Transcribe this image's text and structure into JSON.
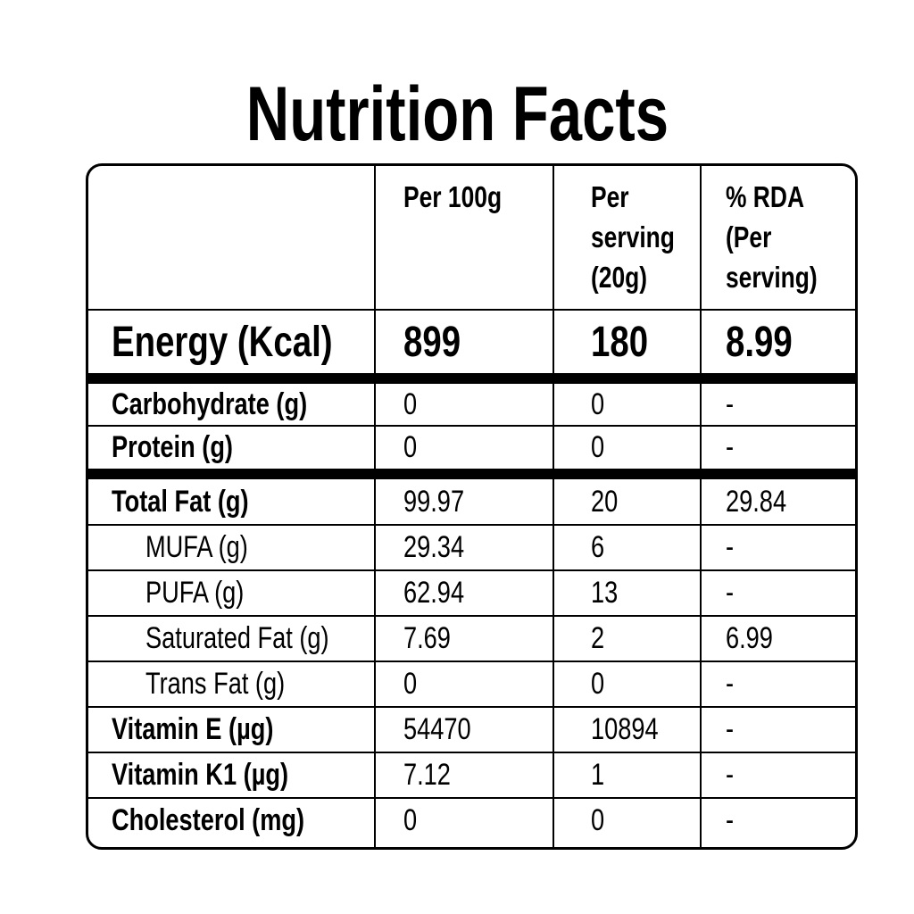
{
  "title": "Nutrition Facts",
  "table": {
    "columns": [
      [
        "Per 100g"
      ],
      [
        "Per",
        "serving",
        "(20g)"
      ],
      [
        "% RDA",
        "(Per",
        "serving)"
      ]
    ],
    "energy": {
      "label": "Energy (Kcal)",
      "values": [
        899,
        180,
        8.99
      ]
    },
    "sections": [
      [
        {
          "label": "Carbohydrate (g)",
          "values": [
            0,
            0,
            "-"
          ]
        },
        {
          "label": "Protein (g)",
          "values": [
            0,
            0,
            "-"
          ]
        }
      ],
      [
        {
          "label": "Total Fat (g)",
          "values": [
            99.97,
            20,
            29.84
          ],
          "components": [
            {
              "label": "MUFA (g)",
              "values": [
                29.34,
                6,
                "-"
              ]
            },
            {
              "label": "PUFA (g)",
              "values": [
                62.94,
                13,
                "-"
              ]
            },
            {
              "label": "Saturated Fat (g)",
              "values": [
                7.69,
                2,
                6.99
              ]
            },
            {
              "label": "Trans Fat (g)",
              "values": [
                0,
                0,
                "-"
              ]
            }
          ]
        },
        {
          "label": "Vitamin E (µg)",
          "values": [
            54470,
            10894,
            "-"
          ]
        },
        {
          "label": "Vitamin K1 (µg)",
          "values": [
            7.12,
            1,
            "-"
          ]
        },
        {
          "label": "Cholesterol (mg)",
          "values": [
            0,
            0,
            "-"
          ]
        }
      ]
    ]
  }
}
